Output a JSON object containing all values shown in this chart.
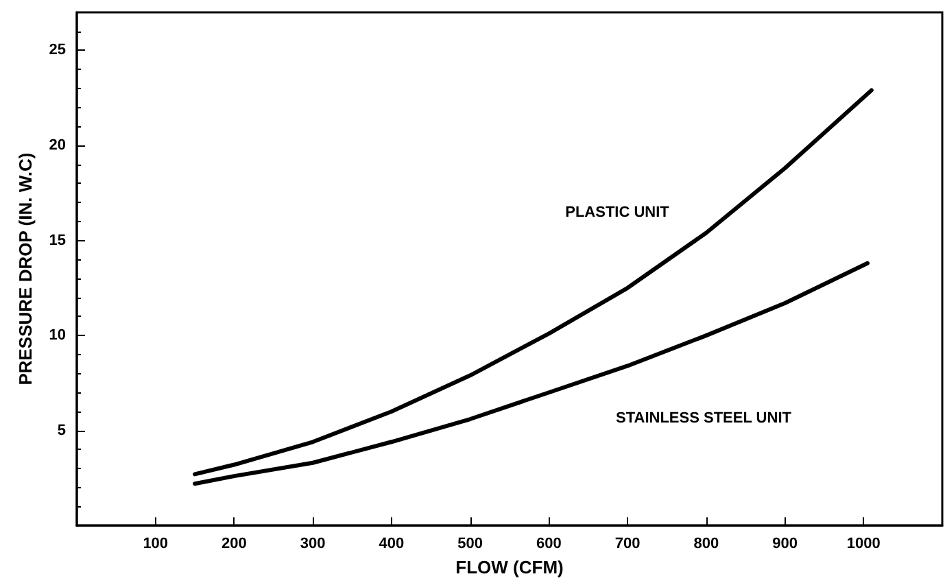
{
  "chart_data": {
    "type": "line",
    "xlabel": "FLOW (CFM)",
    "ylabel": "PRESSURE DROP (IN. W.C)",
    "xlim": [
      0,
      1100
    ],
    "xticks": [
      100,
      200,
      300,
      400,
      500,
      600,
      700,
      800,
      900,
      1000
    ],
    "ylim": [
      0,
      27
    ],
    "yticks": [
      5,
      10,
      15,
      20,
      25
    ],
    "grid": false,
    "marker": "none",
    "line_style": "solid",
    "series": [
      {
        "color": "#000000",
        "x": [
          150,
          200,
          300,
          400,
          500,
          600,
          700,
          800,
          900,
          1010
        ],
        "values": [
          2.7,
          3.2,
          4.4,
          6.0,
          7.9,
          10.1,
          12.5,
          15.4,
          18.8,
          22.9
        ]
      },
      {
        "color": "#000000",
        "x": [
          150,
          200,
          300,
          400,
          500,
          600,
          700,
          800,
          900,
          1005
        ],
        "values": [
          2.2,
          2.6,
          3.3,
          4.4,
          5.6,
          7.0,
          8.4,
          10.0,
          11.7,
          13.8
        ]
      }
    ],
    "annotations": [
      "PLASTIC UNIT",
      "STAINLESS STEEL UNIT"
    ]
  }
}
